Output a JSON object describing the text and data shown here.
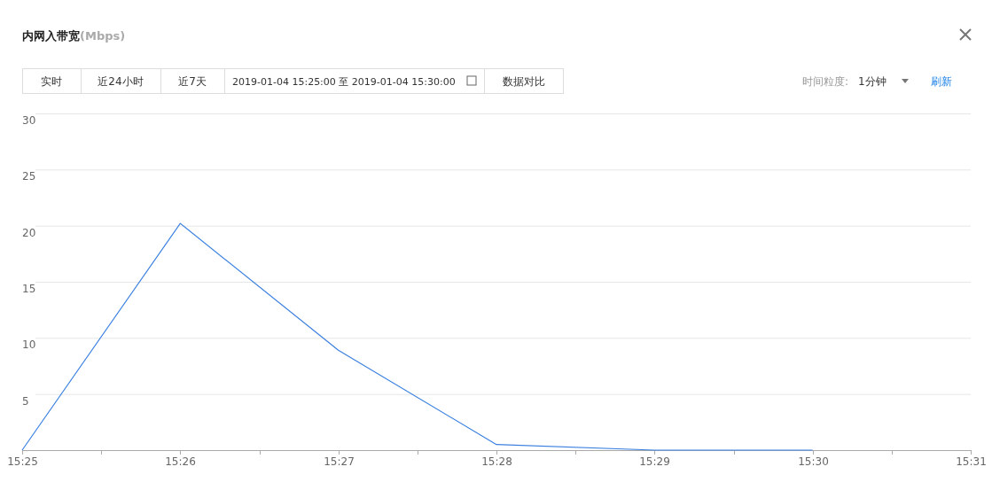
{
  "chart_data": {
    "type": "line",
    "title": "内网入带宽(Mbps)",
    "annotations": [
      "实时",
      "近24小时",
      "近7天",
      "2019-01-04 15:25:00 至 2019-01-04 15:30:00",
      "数据对比",
      "时间粒度:",
      "1分钟",
      "刷新"
    ],
    "x": [
      "2019-01-04T15:25",
      "2019-01-04T15:26",
      "2019-01-04T15:27",
      "2019-01-04T15:28",
      "2019-01-04T15:29",
      "2019-01-04T15:30"
    ],
    "series": [
      {
        "color": "#3b80e0",
        "values": [
          0,
          20.2,
          8.9,
          0.5,
          0,
          0
        ]
      }
    ],
    "xlim": [
      "2019-01-04T15:25",
      "2019-01-04T15:31"
    ],
    "xticks": [
      {
        "value": "2019-01-04T15:25",
        "label": "15:25"
      },
      {
        "value": "2019-01-04T15:25:30",
        "label": null
      },
      {
        "value": "2019-01-04T15:26",
        "label": "15:26"
      },
      {
        "value": "2019-01-04T15:26:30",
        "label": null
      },
      {
        "value": "2019-01-04T15:27",
        "label": "15:27"
      },
      {
        "value": "2019-01-04T15:27:30",
        "label": null
      },
      {
        "value": "2019-01-04T15:28",
        "label": "15:28"
      },
      {
        "value": "2019-01-04T15:28:30",
        "label": null
      },
      {
        "value": "2019-01-04T15:29",
        "label": "15:29"
      },
      {
        "value": "2019-01-04T15:29:30",
        "label": null
      },
      {
        "value": "2019-01-04T15:30",
        "label": "15:30"
      },
      {
        "value": "2019-01-04T15:30:30",
        "label": null
      },
      {
        "value": "2019-01-04T15:31",
        "label": "15:31"
      }
    ],
    "ylim": [
      0,
      30
    ],
    "yticks": [
      {
        "value": 0,
        "label": null
      },
      5,
      10,
      15,
      20,
      25,
      30
    ],
    "grid": "y",
    "marker": "none",
    "line_style": "solid"
  }
}
